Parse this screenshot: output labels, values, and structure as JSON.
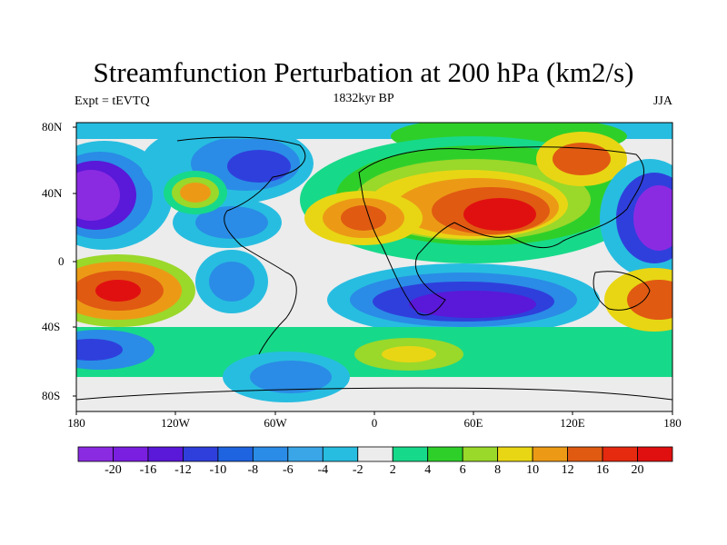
{
  "title": "Streamfunction Perturbation at 200 hPa (km2/s)",
  "subtitle": "1832kyr BP",
  "left_label": "Expt = tEVTQ",
  "right_label": "JJA",
  "lat_ticks": [
    "80N",
    "40N",
    "0",
    "40S",
    "80S"
  ],
  "lon_ticks": [
    "180",
    "120W",
    "60W",
    "0",
    "60E",
    "120E",
    "180"
  ],
  "colorbar": {
    "labels": [
      "-20",
      "-16",
      "-12",
      "-10",
      "-8",
      "-6",
      "-4",
      "-2",
      "2",
      "4",
      "6",
      "8",
      "10",
      "12",
      "16",
      "20"
    ],
    "colors": [
      "#8a2be2",
      "#7a1fe0",
      "#5a18d8",
      "#2f3fdc",
      "#1e63e0",
      "#2a8ce6",
      "#3aa6e8",
      "#27bde0",
      "#ececec",
      "#17d98a",
      "#2fcf2a",
      "#9ad82a",
      "#e8d614",
      "#ec9a16",
      "#e05a12",
      "#e62a10",
      "#e01010"
    ]
  },
  "map": {
    "background_color": "#ececec"
  }
}
